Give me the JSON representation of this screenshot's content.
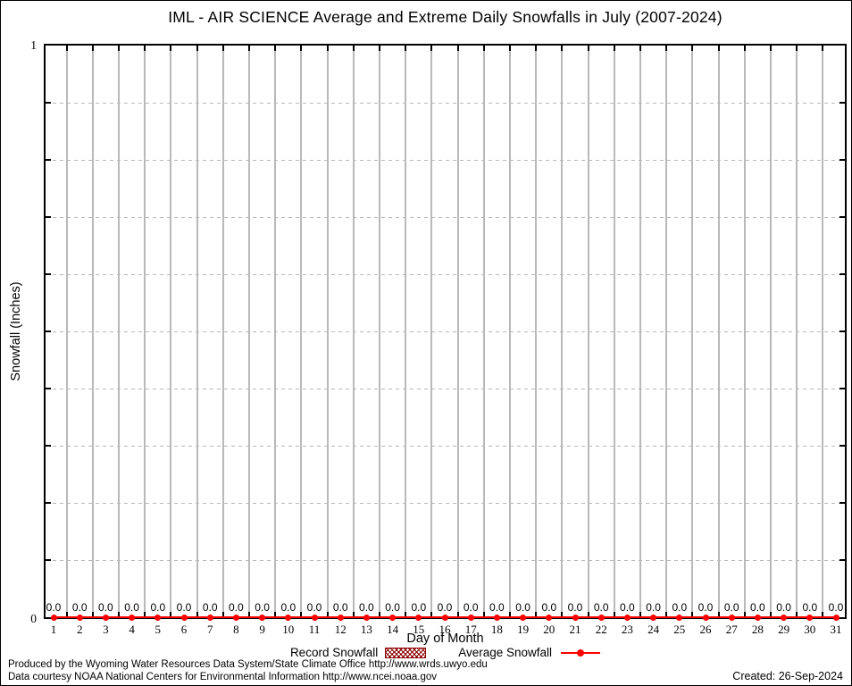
{
  "chart_data": {
    "type": "line",
    "title": "IML - AIR SCIENCE Average and Extreme Daily Snowfalls in July (2007-2024)",
    "xlabel": "Day of Month",
    "ylabel": "Snowfall (Inches)",
    "xlim": [
      1,
      31
    ],
    "ylim": [
      0,
      1
    ],
    "ytick_interval": 0.1,
    "ytick_labels_shown": {
      "bottom": "0",
      "top": "1"
    },
    "grid": {
      "vertical": "solid gray lines between day positions",
      "horizontal": "dashed gray lines every 0.1"
    },
    "legend_position": "bottom-center",
    "x": [
      1,
      2,
      3,
      4,
      5,
      6,
      7,
      8,
      9,
      10,
      11,
      12,
      13,
      14,
      15,
      16,
      17,
      18,
      19,
      20,
      21,
      22,
      23,
      24,
      25,
      26,
      27,
      28,
      29,
      30,
      31
    ],
    "series": [
      {
        "name": "Record Snowfall",
        "marker": "hatched-box",
        "color": "#8b0000",
        "values": [
          0,
          0,
          0,
          0,
          0,
          0,
          0,
          0,
          0,
          0,
          0,
          0,
          0,
          0,
          0,
          0,
          0,
          0,
          0,
          0,
          0,
          0,
          0,
          0,
          0,
          0,
          0,
          0,
          0,
          0,
          0
        ]
      },
      {
        "name": "Average Snowfall",
        "marker": "filled-circle-with-line",
        "color": "#ff0000",
        "values": [
          0,
          0,
          0,
          0,
          0,
          0,
          0,
          0,
          0,
          0,
          0,
          0,
          0,
          0,
          0,
          0,
          0,
          0,
          0,
          0,
          0,
          0,
          0,
          0,
          0,
          0,
          0,
          0,
          0,
          0,
          0
        ]
      }
    ],
    "point_labels": [
      "0.0",
      "0.0",
      "0.0",
      "0.0",
      "0.0",
      "0.0",
      "0.0",
      "0.0",
      "0.0",
      "0.0",
      "0.0",
      "0.0",
      "0.0",
      "0.0",
      "0.0",
      "0.0",
      "0.0",
      "0.0",
      "0.0",
      "0.0",
      "0.0",
      "0.0",
      "0.0",
      "0.0",
      "0.0",
      "0.0",
      "0.0",
      "0.0",
      "0.0",
      "0.0",
      "0.0"
    ]
  },
  "colors": {
    "background": "#ffffff",
    "axis": "#000000",
    "grid": "#b9b9b9",
    "average_line": "#ff0000",
    "record_fill": "#8b0000"
  },
  "footer": {
    "line1": "Produced by the Wyoming Water Resources Data System/State Climate Office http://www.wrds.uwyo.edu",
    "line2": "Data courtesy NOAA National Centers for Environmental Information http://www.ncei.noaa.gov",
    "created": "Created: 26-Sep-2024"
  }
}
